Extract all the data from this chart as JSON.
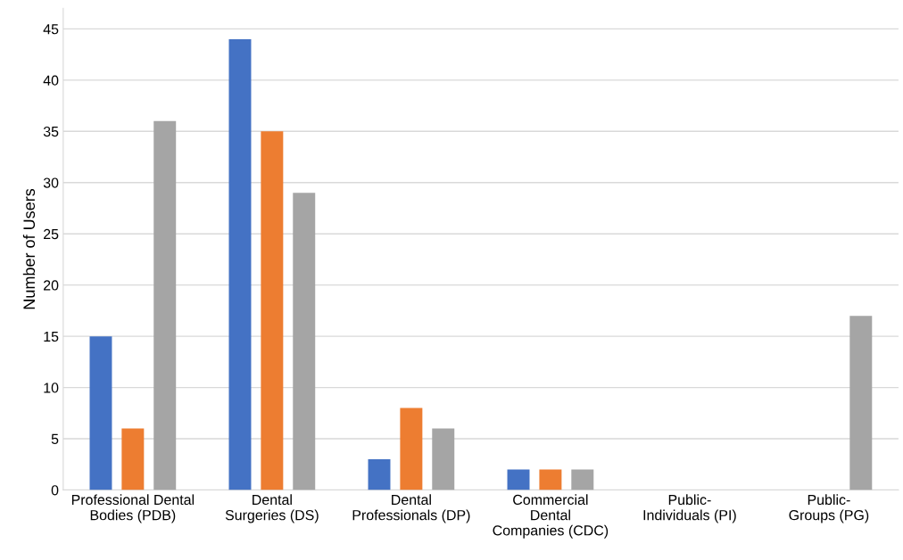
{
  "chart_data": {
    "type": "bar",
    "ylabel": "Number of Users",
    "categories": [
      "Professional Dental\nBodies (PDB)",
      "Dental\nSurgeries (DS)",
      "Dental\nProfessionals (DP)",
      "Commercial\nDental\nCompanies (CDC)",
      "Public-\nIndividuals (PI)",
      "Public-\nGroups (PG)"
    ],
    "series": [
      {
        "color": "#4472c4",
        "values": [
          15,
          44,
          3,
          2,
          0,
          0
        ]
      },
      {
        "color": "#ed7d31",
        "values": [
          6,
          35,
          8,
          2,
          0,
          0
        ]
      },
      {
        "color": "#a5a5a5",
        "values": [
          36,
          29,
          6,
          2,
          0,
          17
        ]
      }
    ],
    "ylim": [
      0,
      47
    ],
    "yticks": [
      0,
      5,
      10,
      15,
      20,
      25,
      30,
      35,
      40,
      45
    ],
    "grid": "y"
  }
}
